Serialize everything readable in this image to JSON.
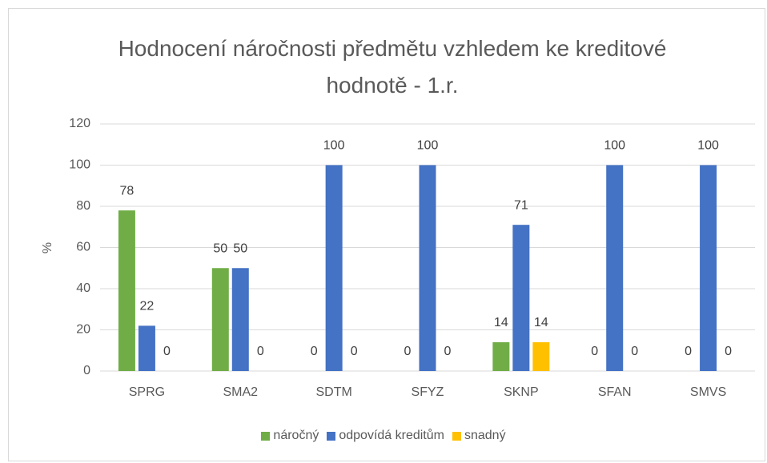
{
  "chart_data": {
    "type": "bar",
    "title": "Hodnocení náročnosti předmětu vzhledem ke kreditové hodnotě - 1.r.",
    "y_label": "%",
    "categories": [
      "SPRG",
      "SMA2",
      "SDTM",
      "SFYZ",
      "SKNP",
      "SFAN",
      "SMVS"
    ],
    "series": [
      {
        "name": "náročný",
        "color": "#70ad47",
        "values": [
          78,
          50,
          0,
          0,
          14,
          0,
          0
        ]
      },
      {
        "name": "odpovídá kreditům",
        "color": "#4472c4",
        "values": [
          22,
          50,
          100,
          100,
          71,
          100,
          100
        ]
      },
      {
        "name": "snadný",
        "color": "#ffc000",
        "values": [
          0,
          0,
          0,
          0,
          14,
          0,
          0
        ]
      }
    ],
    "ylim": [
      0,
      120
    ],
    "yticks": [
      0,
      20,
      40,
      60,
      80,
      100,
      120
    ],
    "grid": true,
    "legend": "bottom"
  }
}
